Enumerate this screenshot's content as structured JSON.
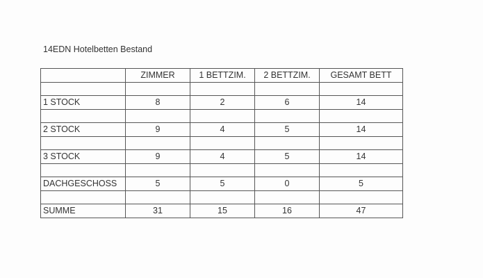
{
  "title": "14EDN Hotelbetten Bestand",
  "headers": [
    "",
    "ZIMMER",
    "1 BETTZIM.",
    "2 BETTZIM.",
    "GESAMT BETT"
  ],
  "rows": [
    [
      "1 STOCK",
      "8",
      "2",
      "6",
      "14"
    ],
    [
      "2 STOCK",
      "9",
      "4",
      "5",
      "14"
    ],
    [
      "3 STOCK",
      "9",
      "4",
      "5",
      "14"
    ],
    [
      "DACHGESCHOSS",
      "5",
      "5",
      "0",
      "5"
    ],
    [
      "SUMME",
      "31",
      "15",
      "16",
      "47"
    ]
  ]
}
